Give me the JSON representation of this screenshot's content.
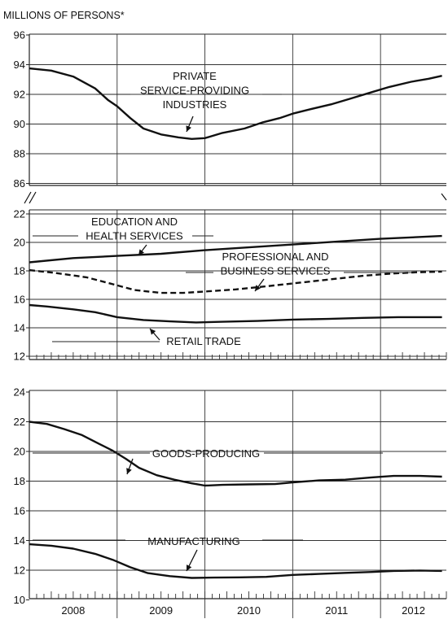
{
  "chart_data": {
    "type": "line",
    "unit_label": "MILLIONS OF PERSONS*",
    "x_labels": [
      "2008",
      "2009",
      "2010",
      "2011",
      "2012"
    ],
    "x_range": [
      2008.0,
      2012.75
    ],
    "grid": true,
    "panels": [
      {
        "name": "top",
        "ylim": [
          84.5,
          96
        ],
        "yticks": [
          "86",
          "88",
          "90",
          "92",
          "94",
          "96"
        ],
        "series": [
          {
            "name": "PRIVATE SERVICE-PROVIDING INDUSTRIES",
            "style": "solid",
            "points": [
              [
                2008.0,
                93.75
              ],
              [
                2008.25,
                93.6
              ],
              [
                2008.5,
                93.2
              ],
              [
                2008.75,
                92.4
              ],
              [
                2008.9,
                91.6
              ],
              [
                2009.0,
                91.2
              ],
              [
                2009.15,
                90.4
              ],
              [
                2009.3,
                89.7
              ],
              [
                2009.5,
                89.3
              ],
              [
                2009.7,
                89.1
              ],
              [
                2009.85,
                89.0
              ],
              [
                2010.0,
                89.05
              ],
              [
                2010.2,
                89.4
              ],
              [
                2010.45,
                89.7
              ],
              [
                2010.65,
                90.1
              ],
              [
                2010.85,
                90.4
              ],
              [
                2011.0,
                90.7
              ],
              [
                2011.2,
                91.0
              ],
              [
                2011.45,
                91.35
              ],
              [
                2011.65,
                91.7
              ],
              [
                2011.9,
                92.15
              ],
              [
                2012.1,
                92.5
              ],
              [
                2012.35,
                92.85
              ],
              [
                2012.55,
                93.05
              ],
              [
                2012.7,
                93.25
              ]
            ]
          }
        ]
      },
      {
        "name": "middle",
        "ylim": [
          12,
          22
        ],
        "yticks": [
          "12",
          "14",
          "16",
          "18",
          "20",
          "22"
        ],
        "series": [
          {
            "name": "EDUCATION AND HEALTH SERVICES",
            "style": "solid",
            "points": [
              [
                2008.0,
                18.6
              ],
              [
                2008.5,
                18.9
              ],
              [
                2009.0,
                19.05
              ],
              [
                2009.5,
                19.2
              ],
              [
                2010.0,
                19.45
              ],
              [
                2010.5,
                19.65
              ],
              [
                2011.0,
                19.85
              ],
              [
                2011.5,
                20.05
              ],
              [
                2012.0,
                20.25
              ],
              [
                2012.7,
                20.45
              ]
            ]
          },
          {
            "name": "PROFESSIONAL AND BUSINESS SERVICES",
            "style": "dashed",
            "points": [
              [
                2008.0,
                18.05
              ],
              [
                2008.3,
                17.85
              ],
              [
                2008.65,
                17.55
              ],
              [
                2008.9,
                17.15
              ],
              [
                2009.2,
                16.65
              ],
              [
                2009.5,
                16.45
              ],
              [
                2009.75,
                16.45
              ],
              [
                2010.0,
                16.55
              ],
              [
                2010.35,
                16.7
              ],
              [
                2010.6,
                16.85
              ],
              [
                2010.9,
                17.05
              ],
              [
                2011.2,
                17.25
              ],
              [
                2011.5,
                17.45
              ],
              [
                2011.8,
                17.65
              ],
              [
                2012.1,
                17.8
              ],
              [
                2012.4,
                17.9
              ],
              [
                2012.7,
                17.95
              ]
            ]
          },
          {
            "name": "RETAIL TRADE",
            "style": "solid",
            "points": [
              [
                2008.0,
                15.6
              ],
              [
                2008.2,
                15.5
              ],
              [
                2008.5,
                15.3
              ],
              [
                2008.75,
                15.1
              ],
              [
                2009.0,
                14.75
              ],
              [
                2009.3,
                14.55
              ],
              [
                2009.6,
                14.45
              ],
              [
                2009.9,
                14.38
              ],
              [
                2010.2,
                14.42
              ],
              [
                2010.6,
                14.48
              ],
              [
                2011.0,
                14.58
              ],
              [
                2011.4,
                14.62
              ],
              [
                2011.8,
                14.7
              ],
              [
                2012.2,
                14.75
              ],
              [
                2012.7,
                14.75
              ]
            ]
          }
        ]
      },
      {
        "name": "bottom",
        "ylim": [
          10,
          24
        ],
        "yticks": [
          "10",
          "12",
          "14",
          "16",
          "18",
          "20",
          "22",
          "24"
        ],
        "series": [
          {
            "name": "GOODS-PRODUCING",
            "style": "solid",
            "points": [
              [
                2008.0,
                22.0
              ],
              [
                2008.2,
                21.85
              ],
              [
                2008.4,
                21.5
              ],
              [
                2008.6,
                21.1
              ],
              [
                2008.8,
                20.5
              ],
              [
                2008.95,
                20.05
              ],
              [
                2009.1,
                19.5
              ],
              [
                2009.25,
                18.9
              ],
              [
                2009.45,
                18.4
              ],
              [
                2009.65,
                18.1
              ],
              [
                2009.85,
                17.85
              ],
              [
                2010.0,
                17.7
              ],
              [
                2010.2,
                17.75
              ],
              [
                2010.5,
                17.78
              ],
              [
                2010.8,
                17.8
              ],
              [
                2011.0,
                17.92
              ],
              [
                2011.3,
                18.05
              ],
              [
                2011.6,
                18.1
              ],
              [
                2011.9,
                18.25
              ],
              [
                2012.15,
                18.35
              ],
              [
                2012.45,
                18.35
              ],
              [
                2012.7,
                18.3
              ]
            ]
          },
          {
            "name": "MANUFACTURING",
            "style": "solid",
            "points": [
              [
                2008.0,
                13.75
              ],
              [
                2008.25,
                13.65
              ],
              [
                2008.5,
                13.45
              ],
              [
                2008.75,
                13.1
              ],
              [
                2008.95,
                12.7
              ],
              [
                2009.15,
                12.2
              ],
              [
                2009.35,
                11.8
              ],
              [
                2009.6,
                11.6
              ],
              [
                2009.85,
                11.48
              ],
              [
                2010.1,
                11.5
              ],
              [
                2010.4,
                11.52
              ],
              [
                2010.7,
                11.55
              ],
              [
                2011.0,
                11.68
              ],
              [
                2011.3,
                11.75
              ],
              [
                2011.6,
                11.82
              ],
              [
                2011.9,
                11.88
              ],
              [
                2012.15,
                11.95
              ],
              [
                2012.45,
                11.98
              ],
              [
                2012.7,
                11.95
              ]
            ]
          }
        ]
      }
    ]
  }
}
